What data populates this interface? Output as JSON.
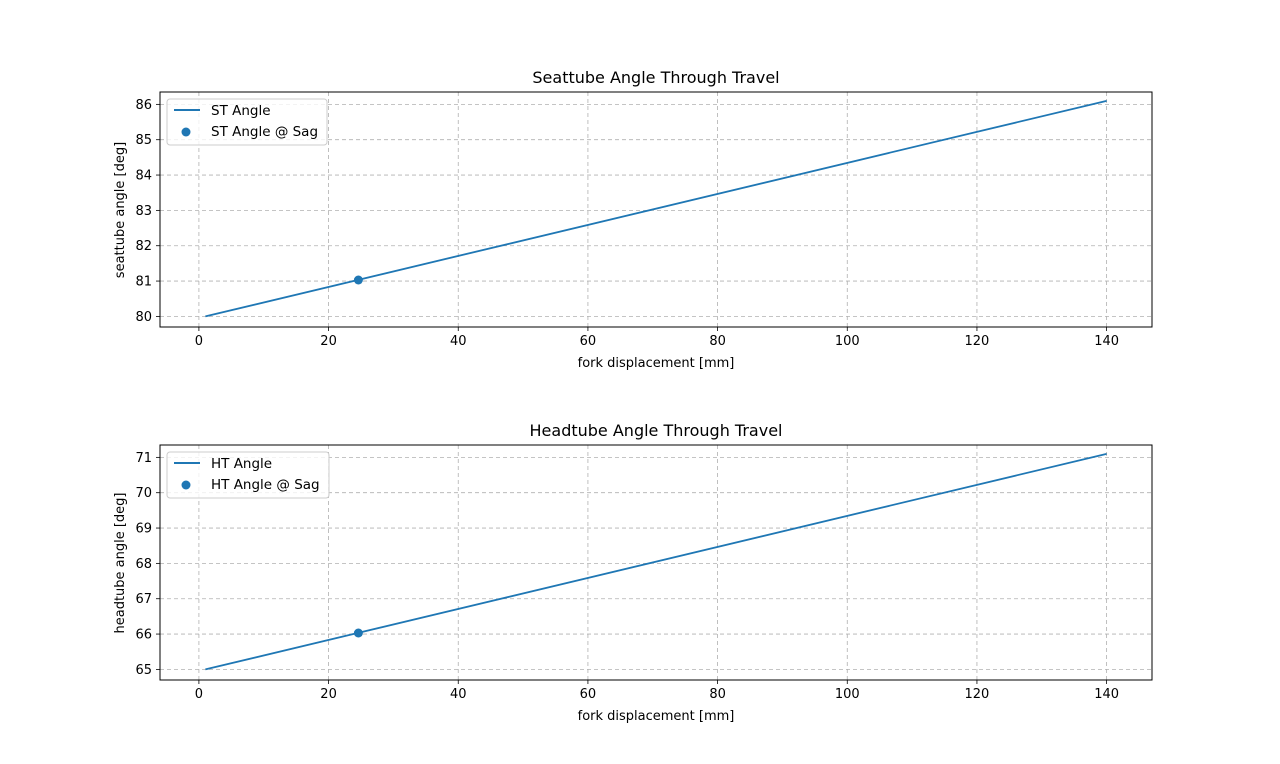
{
  "chart_data": [
    {
      "type": "line",
      "title": "Seattube Angle Through Travel",
      "xlabel": "fork displacement [mm]",
      "ylabel": "seattube angle [deg]",
      "xlim": [
        -6,
        147
      ],
      "ylim": [
        79.7,
        86.35
      ],
      "xticks": [
        0,
        20,
        40,
        60,
        80,
        100,
        120,
        140
      ],
      "yticks": [
        80,
        81,
        82,
        83,
        84,
        85,
        86
      ],
      "grid": true,
      "legend_position": "upper-left",
      "series": [
        {
          "name": "ST Angle",
          "kind": "line",
          "color": "#1f77b4",
          "x": [
            1,
            140
          ],
          "y": [
            80.0,
            86.1
          ]
        },
        {
          "name": "ST Angle @ Sag",
          "kind": "scatter",
          "color": "#1f77b4",
          "x": [
            24.6
          ],
          "y": [
            81.03
          ]
        }
      ]
    },
    {
      "type": "line",
      "title": "Headtube Angle Through Travel",
      "xlabel": "fork displacement [mm]",
      "ylabel": "headtube angle [deg]",
      "xlim": [
        -6,
        147
      ],
      "ylim": [
        64.7,
        71.35
      ],
      "xticks": [
        0,
        20,
        40,
        60,
        80,
        100,
        120,
        140
      ],
      "yticks": [
        65,
        66,
        67,
        68,
        69,
        70,
        71
      ],
      "grid": true,
      "legend_position": "upper-left",
      "series": [
        {
          "name": "HT Angle",
          "kind": "line",
          "color": "#1f77b4",
          "x": [
            1,
            140
          ],
          "y": [
            65.0,
            71.1
          ]
        },
        {
          "name": "HT Angle @ Sag",
          "kind": "scatter",
          "color": "#1f77b4",
          "x": [
            24.6
          ],
          "y": [
            66.03
          ]
        }
      ]
    }
  ]
}
